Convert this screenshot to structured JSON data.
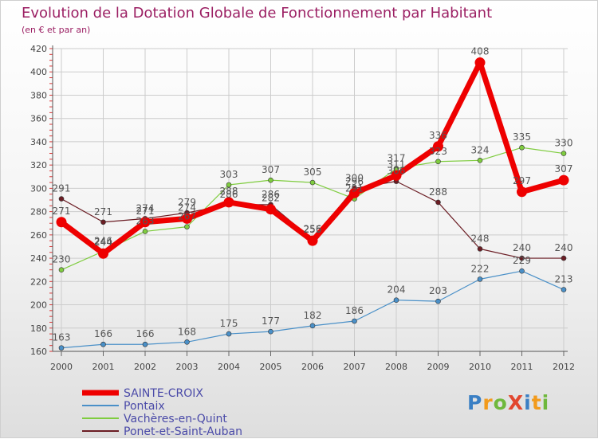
{
  "chart_data": {
    "type": "line",
    "title": "Evolution de la Dotation Globale de Fonctionnement par Habitant",
    "subtitle": "(en € et par an)",
    "xlabel": "",
    "ylabel": "",
    "ylim": [
      160,
      420
    ],
    "yticks": [
      160,
      180,
      200,
      220,
      240,
      260,
      280,
      300,
      320,
      340,
      360,
      380,
      400,
      420
    ],
    "categories": [
      "2000",
      "2001",
      "2002",
      "2003",
      "2004",
      "2005",
      "2006",
      "2007",
      "2008",
      "2009",
      "2010",
      "2011",
      "2012"
    ],
    "grid": true,
    "legend": "bottom-left",
    "series": [
      {
        "name": "SAINTE-CROIX",
        "color": "#ee0000",
        "values": [
          271,
          244,
          271,
          274,
          288,
          282,
          255,
          296,
          311,
          336,
          408,
          297,
          307
        ]
      },
      {
        "name": "Pontaix",
        "color": "#4a90c8",
        "values": [
          163,
          166,
          166,
          168,
          175,
          177,
          182,
          186,
          204,
          203,
          222,
          229,
          213
        ]
      },
      {
        "name": "Vachères-en-Quint",
        "color": "#7fcc3f",
        "values": [
          230,
          246,
          263,
          267,
          303,
          307,
          305,
          291,
          317,
          323,
          324,
          335,
          330
        ]
      },
      {
        "name": "Ponet-et-Saint-Auban",
        "color": "#6b1d24",
        "values": [
          291,
          271,
          274,
          279,
          286,
          286,
          256,
          300,
          306,
          288,
          248,
          240,
          240
        ]
      }
    ]
  },
  "watermark": {
    "text": "ProXiti",
    "letters": [
      "P",
      "r",
      "o",
      "X",
      "i",
      "t",
      "i"
    ],
    "colors": [
      "#3a7fc4",
      "#f29a1b",
      "#6fb83c",
      "#e2472f",
      "#3a7fc4",
      "#f29a1b",
      "#6fb83c"
    ]
  },
  "colors": {
    "title": "#9b1f63",
    "axis_text": "#444444",
    "grid": "#cccccc",
    "legend_text": "#4a4aa8"
  }
}
